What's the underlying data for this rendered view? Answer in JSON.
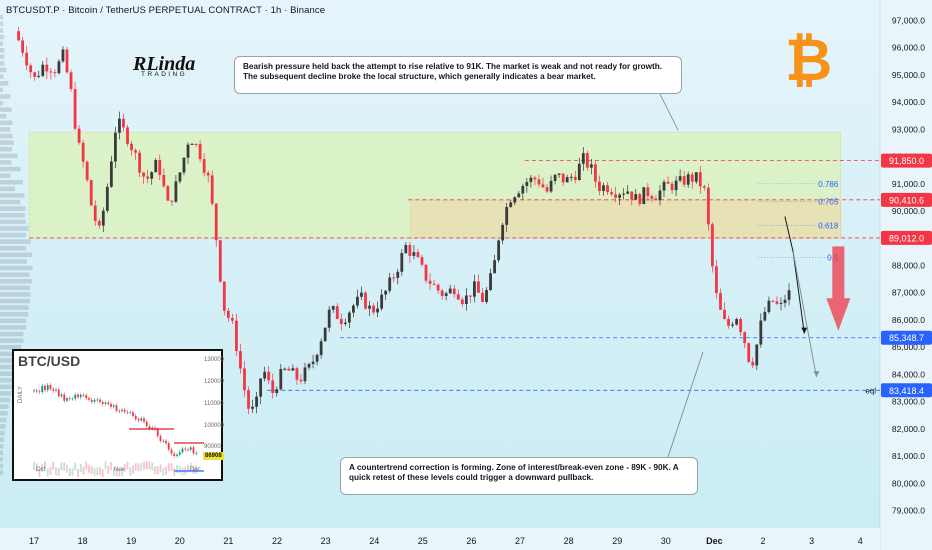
{
  "header": {
    "title": "BTCUSDT.P · Bitcoin / TetherUS PERPETUAL CONTRACT · 1h · Binance"
  },
  "logo": {
    "main": "RLinda",
    "sub": "TRADING"
  },
  "btc_logo_glyph": "₿",
  "annotations": {
    "top": "Bearish pressure held back the attempt to rise relative to 91K. The market is weak and not ready for growth. The subsequent decline broke the local structure, which generally indicates a bear market.",
    "bottom": "A countertrend correction is forming. Zone of interest/break-even zone - 89K - 90K. A quick retest of these levels could trigger a downward pullback."
  },
  "inset": {
    "title": "BTC/USD",
    "side_label": "DAILY",
    "y_ticks": [
      "130000",
      "120000",
      "110000",
      "100000",
      "90000"
    ],
    "x_ticks": [
      "Oct",
      "Nov",
      "Dec"
    ],
    "price_tag": "86908"
  },
  "chart_data": {
    "type": "candlestick",
    "symbol": "BTCUSDT.P",
    "timeframe": "1h",
    "ylim": [
      78400,
      97600
    ],
    "x_range": [
      16.6,
      4.6
    ],
    "y_ticks": [
      97000,
      96000,
      95000,
      94000,
      93000,
      92000,
      91000,
      90000,
      89000,
      88000,
      87000,
      86000,
      85000,
      84000,
      83000,
      82000,
      81000,
      80000,
      79000
    ],
    "x_ticks": [
      {
        "label": "17",
        "day": 17
      },
      {
        "label": "18",
        "day": 18
      },
      {
        "label": "19",
        "day": 19
      },
      {
        "label": "20",
        "day": 20
      },
      {
        "label": "21",
        "day": 21
      },
      {
        "label": "22",
        "day": 22
      },
      {
        "label": "23",
        "day": 23
      },
      {
        "label": "24",
        "day": 24
      },
      {
        "label": "25",
        "day": 25
      },
      {
        "label": "26",
        "day": 26
      },
      {
        "label": "27",
        "day": 27
      },
      {
        "label": "28",
        "day": 28
      },
      {
        "label": "29",
        "day": 29
      },
      {
        "label": "30",
        "day": 30
      },
      {
        "label": "Dec",
        "day": 31
      },
      {
        "label": "2",
        "day": 32
      },
      {
        "label": "3",
        "day": 33
      },
      {
        "label": "4",
        "day": 34
      }
    ],
    "price_path": [
      [
        16.6,
        96600
      ],
      [
        16.8,
        95800
      ],
      [
        17.0,
        94800
      ],
      [
        17.2,
        95400
      ],
      [
        17.45,
        95200
      ],
      [
        17.6,
        95700
      ],
      [
        17.75,
        94500
      ],
      [
        17.9,
        92500
      ],
      [
        18.05,
        91500
      ],
      [
        18.2,
        90000
      ],
      [
        18.35,
        89200
      ],
      [
        18.5,
        90800
      ],
      [
        18.7,
        93300
      ],
      [
        18.9,
        92800
      ],
      [
        19.05,
        92200
      ],
      [
        19.3,
        91100
      ],
      [
        19.55,
        91800
      ],
      [
        19.75,
        90200
      ],
      [
        19.9,
        90800
      ],
      [
        20.05,
        91700
      ],
      [
        20.2,
        92800
      ],
      [
        20.4,
        92200
      ],
      [
        20.6,
        91100
      ],
      [
        20.75,
        89000
      ],
      [
        20.9,
        86500
      ],
      [
        21.1,
        85700
      ],
      [
        21.25,
        84200
      ],
      [
        21.4,
        82800
      ],
      [
        21.55,
        82600
      ],
      [
        21.7,
        84300
      ],
      [
        21.9,
        83300
      ],
      [
        22.05,
        83900
      ],
      [
        22.2,
        84200
      ],
      [
        22.45,
        83800
      ],
      [
        22.7,
        84300
      ],
      [
        22.9,
        85300
      ],
      [
        23.1,
        86400
      ],
      [
        23.35,
        86000
      ],
      [
        23.55,
        86500
      ],
      [
        23.75,
        86800
      ],
      [
        23.95,
        86300
      ],
      [
        24.2,
        86900
      ],
      [
        24.45,
        87800
      ],
      [
        24.65,
        88700
      ],
      [
        24.85,
        88300
      ],
      [
        25.05,
        87600
      ],
      [
        25.25,
        87200
      ],
      [
        25.45,
        86900
      ],
      [
        25.65,
        87200
      ],
      [
        25.85,
        86700
      ],
      [
        26.05,
        87200
      ],
      [
        26.25,
        86700
      ],
      [
        26.45,
        87800
      ],
      [
        26.6,
        89500
      ],
      [
        26.8,
        90500
      ],
      [
        26.95,
        90800
      ],
      [
        27.15,
        91100
      ],
      [
        27.35,
        91200
      ],
      [
        27.55,
        90700
      ],
      [
        27.75,
        91300
      ],
      [
        27.95,
        91100
      ],
      [
        28.15,
        91400
      ],
      [
        28.3,
        91900
      ],
      [
        28.45,
        91600
      ],
      [
        28.6,
        90900
      ],
      [
        28.8,
        90900
      ],
      [
        29.0,
        90700
      ],
      [
        29.2,
        90800
      ],
      [
        29.4,
        90400
      ],
      [
        29.6,
        90700
      ],
      [
        29.8,
        90600
      ],
      [
        30.0,
        90900
      ],
      [
        30.25,
        91000
      ],
      [
        30.45,
        91200
      ],
      [
        30.65,
        91200
      ],
      [
        30.8,
        90700
      ],
      [
        30.9,
        89000
      ],
      [
        31.0,
        87200
      ],
      [
        31.1,
        86400
      ],
      [
        31.25,
        85700
      ],
      [
        31.45,
        86200
      ],
      [
        31.6,
        85400
      ],
      [
        31.75,
        84300
      ],
      [
        31.85,
        84900
      ],
      [
        32.0,
        86200
      ],
      [
        32.2,
        86700
      ],
      [
        32.35,
        86400
      ],
      [
        32.5,
        87000
      ],
      [
        32.6,
        86900
      ]
    ],
    "projections": [
      {
        "name": "main",
        "points": [
          [
            32.45,
            89800
          ],
          [
            32.62,
            88500
          ],
          [
            32.85,
            85500
          ]
        ]
      },
      {
        "name": "extended",
        "points": [
          [
            32.62,
            88500
          ],
          [
            33.1,
            83900
          ]
        ]
      }
    ],
    "zones": [
      {
        "name": "supply",
        "from_day": 16.9,
        "to_day": 33.6,
        "low": 89000,
        "high": 92900,
        "color": "#dcf2c0"
      },
      {
        "name": "interest",
        "from_day": 24.75,
        "to_day": 33.6,
        "low": 89000,
        "high": 90400,
        "color": "#eadfb4"
      }
    ],
    "levels": [
      {
        "price": 91850,
        "label": "91,850.0",
        "color": "#f23645",
        "from_day": 27.1,
        "dashed": true
      },
      {
        "price": 90410.6,
        "label": "90,410.6",
        "color": "#f23645",
        "from_day": 24.7,
        "dashed": true
      },
      {
        "price": 89012,
        "label": "89,012.0",
        "color": "#f23645",
        "from_day": 16.9,
        "dashed": true
      },
      {
        "price": 85348.7,
        "label": "85,348.7",
        "color": "#2962ff",
        "from_day": 23.3,
        "dashed": true
      },
      {
        "price": 83418.4,
        "label": "83,418.4",
        "color": "#2962ff",
        "from_day": 21.8,
        "dashed": true
      }
    ],
    "fib_levels": [
      {
        "ratio": "0.786",
        "price": 91000
      },
      {
        "ratio": "0.705",
        "price": 90350
      },
      {
        "ratio": "0.618",
        "price": 89460
      },
      {
        "ratio": "0.5",
        "price": 88300
      }
    ],
    "eql_label": "eql",
    "colors": {
      "up": "#089981",
      "down": "#f23645",
      "black": "#131722",
      "arrow": "#f23645"
    }
  }
}
